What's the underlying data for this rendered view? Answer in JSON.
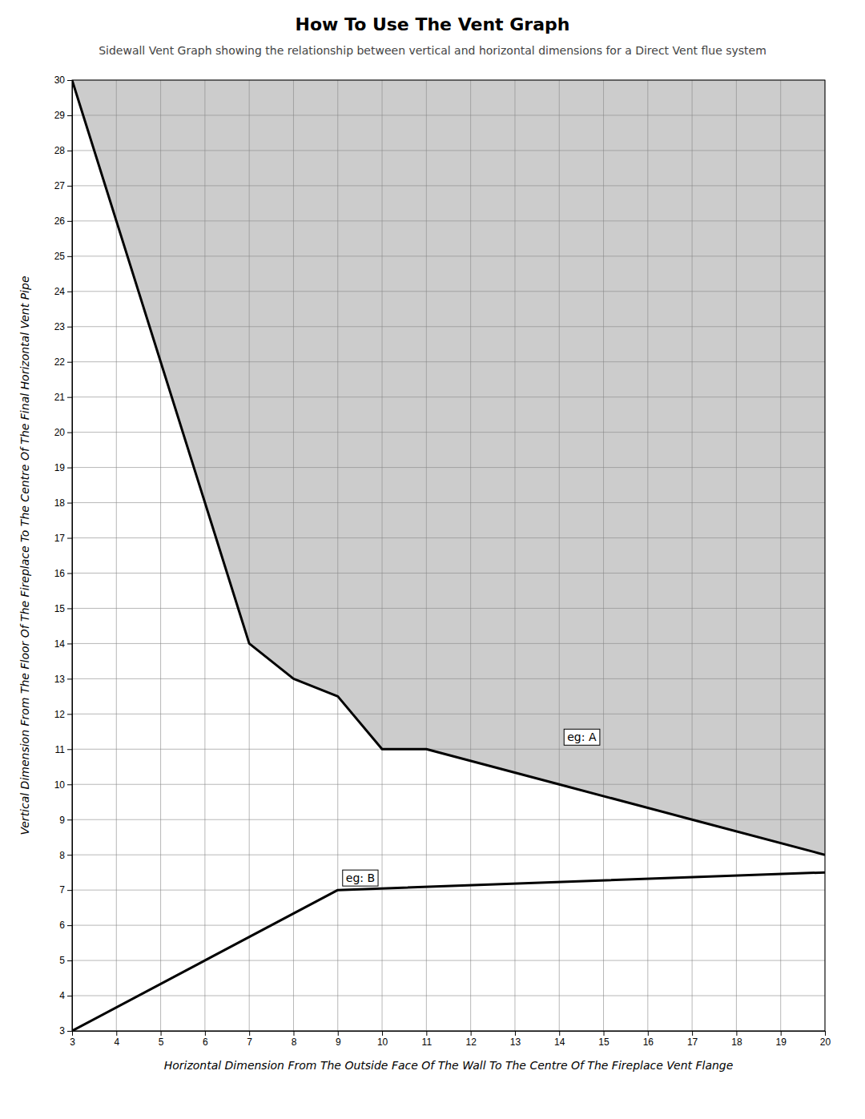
{
  "chart_data": {
    "type": "line",
    "title": "How To Use The Vent Graph",
    "subtitle": "Sidewall Vent Graph showing the relationship between vertical and horizontal dimensions for a Direct Vent flue system",
    "x_label": "Horizontal Dimension From The Outside Face Of The Wall To The Centre Of The Fireplace Vent Flange",
    "y_label": "Vertical Dimension From The Floor Of The Fireplace To The Centre Of The Final Horizontal Vent Pipe",
    "color": "#cccccc",
    "series": [
      {
        "x": [
          3,
          4,
          5,
          6,
          7,
          8,
          9,
          10,
          11,
          14,
          17,
          20
        ],
        "values": [
          30,
          26,
          22,
          18,
          14,
          13,
          12.5,
          11,
          11,
          10,
          9,
          8
        ],
        "color": "#000000"
      },
      {
        "x": [
          3,
          9,
          20
        ],
        "values": [
          3,
          7,
          7.5
        ],
        "color": "#000000"
      }
    ],
    "annotations": [
      {
        "text": "eg: A",
        "x": 14,
        "y": 11
      },
      {
        "text": "eg: B",
        "x": 9,
        "y": 7
      }
    ],
    "xlim": [
      3,
      20
    ],
    "ylim": [
      3,
      30
    ],
    "xticks": [
      3,
      4,
      5,
      6,
      7,
      8,
      9,
      10,
      11,
      12,
      13,
      14,
      15,
      16,
      17,
      18,
      19,
      20
    ],
    "yticks": [
      3,
      4,
      5,
      6,
      7,
      8,
      9,
      10,
      11,
      12,
      13,
      14,
      15,
      16,
      17,
      18,
      19,
      20,
      21,
      22,
      23,
      24,
      25,
      26,
      27,
      28,
      29,
      30
    ],
    "grid": true
  }
}
